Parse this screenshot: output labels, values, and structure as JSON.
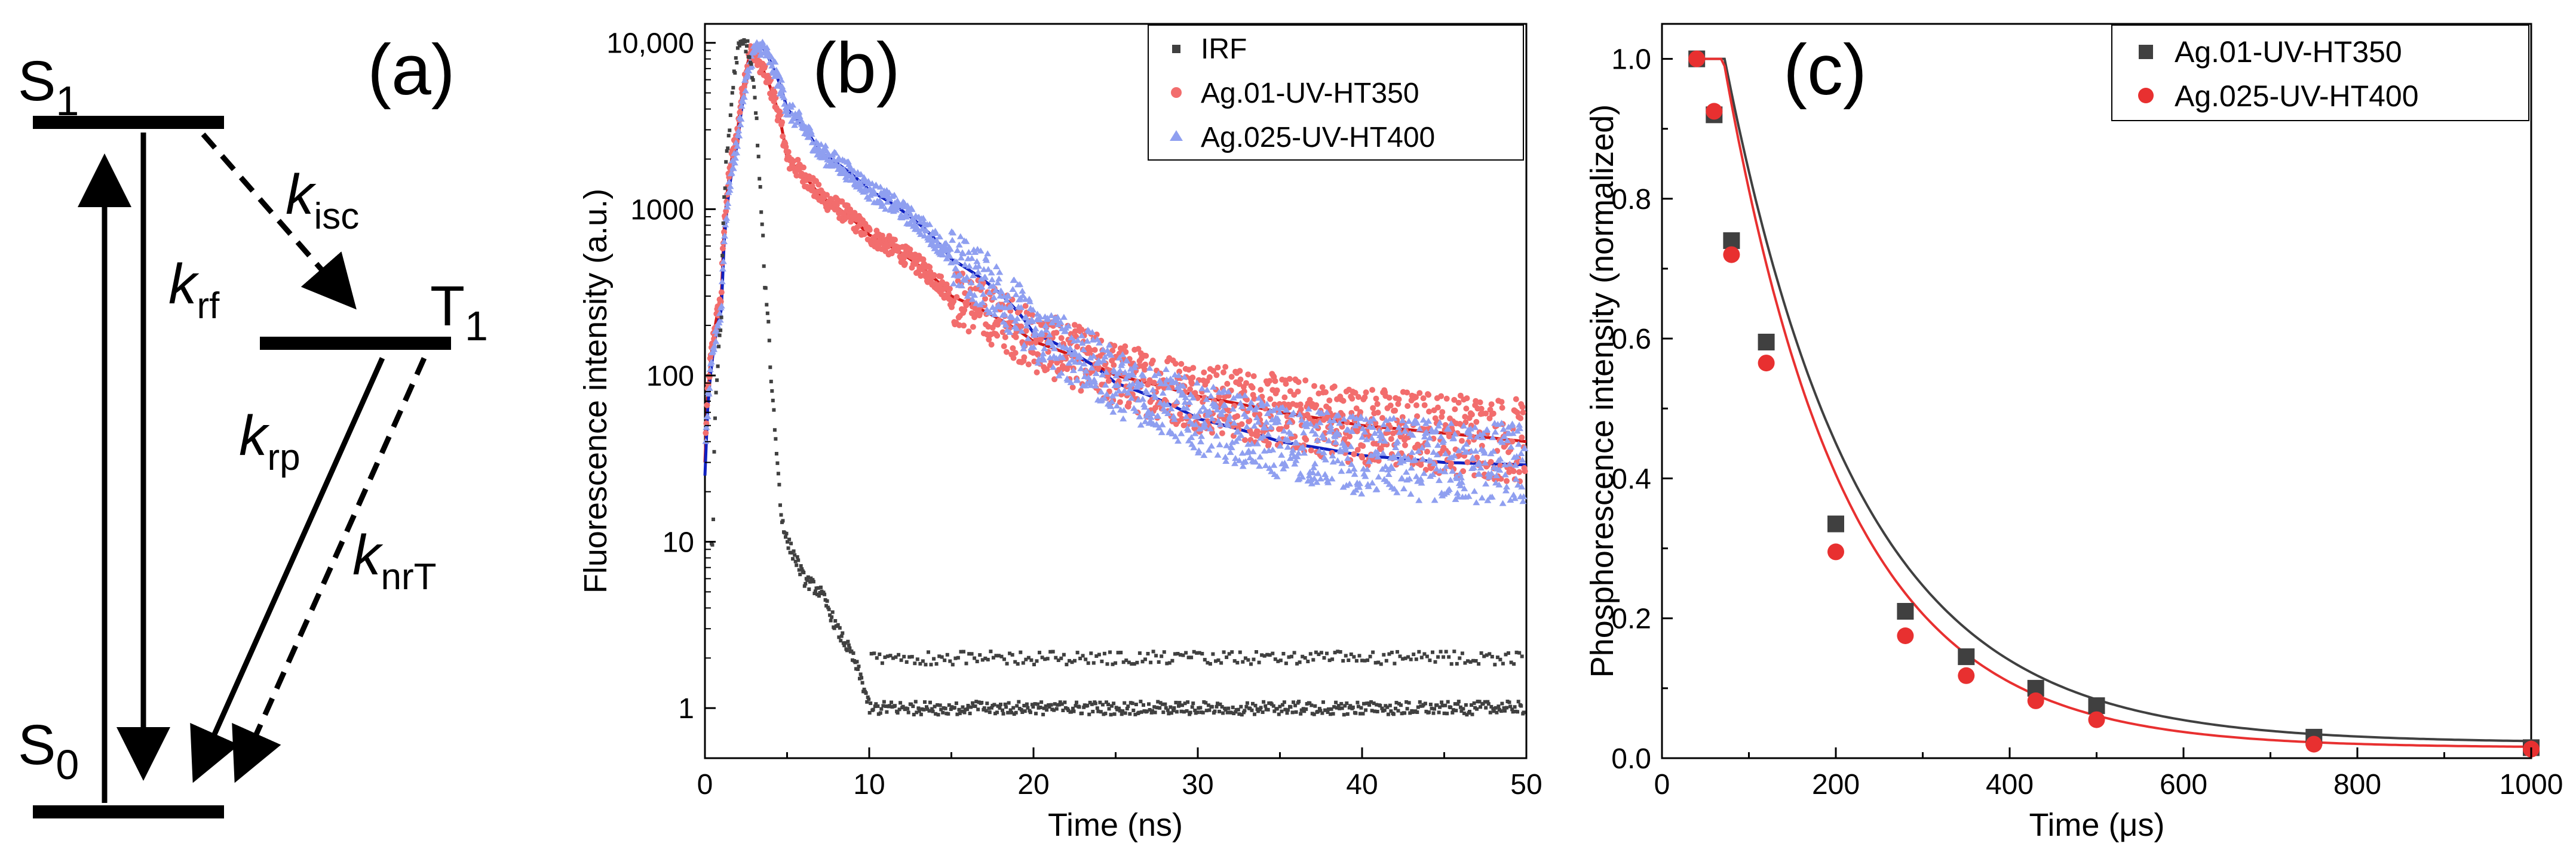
{
  "panel_a": {
    "panel_label": "(a)",
    "levels": {
      "s1": "S",
      "s1_sub": "1",
      "t1": "T",
      "t1_sub": "1",
      "s0": "S",
      "s0_sub": "0"
    },
    "rates": {
      "isc": {
        "k": "k",
        "sub": "isc"
      },
      "rf": {
        "k": "k",
        "sub": "rf"
      },
      "rp": {
        "k": "k",
        "sub": "rp"
      },
      "nrT": {
        "k": "k",
        "sub": "nrT"
      }
    }
  },
  "chart_data": [
    {
      "panel_label": "(b)",
      "type": "scatter",
      "xlabel": "Time (ns)",
      "ylabel": "Fluorescence intensity (a.u.)",
      "xlim": [
        0,
        50
      ],
      "ylim": [
        0.5,
        13000
      ],
      "yscale": "log",
      "grid": false,
      "legend_position": "top-right",
      "xticks": [
        0,
        10,
        20,
        30,
        40,
        50
      ],
      "xtick_labels": [
        "0",
        "10",
        "20",
        "30",
        "40",
        "50"
      ],
      "yticks": [
        1,
        10,
        100,
        1000,
        10000
      ],
      "ytick_labels": [
        "1",
        "10",
        "100",
        "1000",
        "10,000"
      ],
      "series": [
        {
          "name": "IRF",
          "marker": "square",
          "color": "#404040",
          "x": [
            0.5,
            1.0,
            1.5,
            2.0,
            2.3,
            2.6,
            3.0,
            3.3,
            3.6,
            4.0,
            4.3,
            4.6,
            5.0,
            5.5,
            6.0,
            7.0,
            8.0,
            9.0,
            10.0
          ],
          "y": [
            10,
            200,
            3000,
            9000,
            10000,
            9500,
            5000,
            1500,
            400,
            100,
            40,
            15,
            10,
            8,
            6,
            5,
            3,
            2,
            1
          ]
        },
        {
          "name": "Ag.01-UV-HT350",
          "marker": "circle",
          "color": "#f26d6d",
          "fit_color": "#d01818",
          "x": [
            0,
            1,
            2,
            2.8,
            3.5,
            5,
            7,
            10,
            15,
            20,
            25,
            30,
            35,
            40,
            45,
            50
          ],
          "y": [
            30,
            300,
            3000,
            9000,
            7000,
            2000,
            1200,
            700,
            300,
            160,
            100,
            75,
            60,
            50,
            45,
            40
          ]
        },
        {
          "name": "Ag.025-UV-HT400",
          "marker": "triangle",
          "color": "#8f9ff0",
          "fit_color": "#1020c0",
          "x": [
            0,
            1,
            2,
            3,
            3.5,
            5,
            7,
            10,
            15,
            20,
            25,
            30,
            35,
            40,
            45,
            50
          ],
          "y": [
            25,
            250,
            2500,
            9000,
            9500,
            4000,
            2200,
            1300,
            500,
            180,
            90,
            55,
            40,
            33,
            30,
            29
          ]
        }
      ]
    },
    {
      "panel_label": "(c)",
      "type": "scatter",
      "xlabel": "Time (μs)",
      "ylabel": "Phosphorescence intensity (normalized)",
      "xlim": [
        0,
        1000
      ],
      "ylim": [
        0,
        1.05
      ],
      "grid": false,
      "legend_position": "top-right",
      "xticks": [
        0,
        200,
        400,
        600,
        800,
        1000
      ],
      "xtick_labels": [
        "0",
        "200",
        "400",
        "600",
        "800",
        "1000"
      ],
      "yticks": [
        0,
        0.2,
        0.4,
        0.6,
        0.8,
        1.0
      ],
      "ytick_labels": [
        "0.0",
        "0.2",
        "0.4",
        "0.6",
        "0.8",
        "1.0"
      ],
      "series": [
        {
          "name": "Ag.01-UV-HT350",
          "marker": "square",
          "color": "#404040",
          "x": [
            40,
            60,
            80,
            120,
            200,
            280,
            350,
            430,
            500,
            750,
            1000
          ],
          "y": [
            1.0,
            0.92,
            0.74,
            0.595,
            0.335,
            0.21,
            0.145,
            0.1,
            0.075,
            0.03,
            0.015
          ]
        },
        {
          "name": "Ag.025-UV-HT400",
          "marker": "circle",
          "color": "#e83030",
          "x": [
            40,
            60,
            80,
            120,
            200,
            280,
            350,
            430,
            500,
            750,
            1000
          ],
          "y": [
            1.0,
            0.925,
            0.72,
            0.565,
            0.295,
            0.175,
            0.118,
            0.082,
            0.055,
            0.02,
            0.013
          ]
        }
      ],
      "fits": [
        {
          "series": "Ag.01-UV-HT350",
          "color": "#404040",
          "model": "exp",
          "amplitude": 1.225,
          "tau": 155,
          "offset": 0.022
        },
        {
          "series": "Ag.025-UV-HT400",
          "color": "#e83030",
          "model": "exp",
          "amplitude": 1.24,
          "tau": 140,
          "offset": 0.015
        }
      ]
    }
  ]
}
